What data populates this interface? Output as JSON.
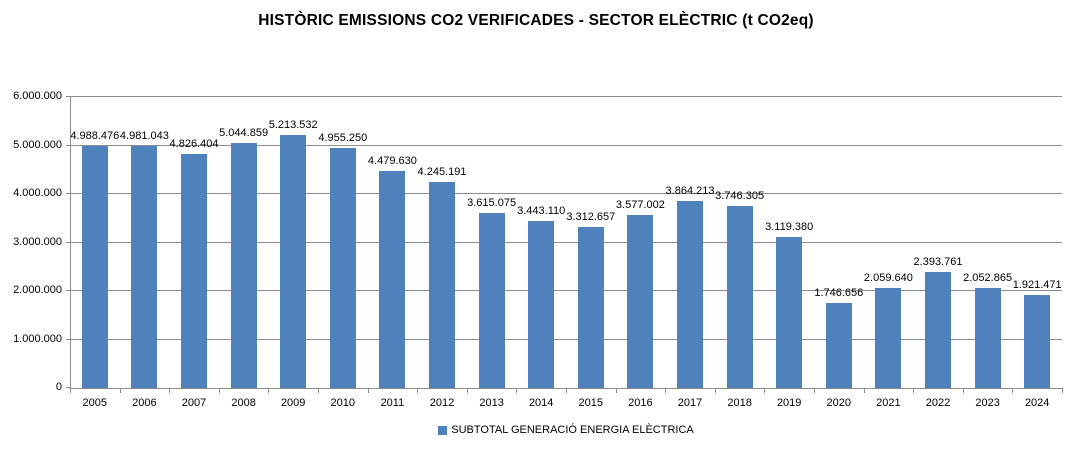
{
  "chart_data": {
    "type": "bar",
    "title": "HISTÒRIC EMISSIONS CO2 VERIFICADES - SECTOR ELÈCTRIC (t CO2eq)",
    "xlabel": "",
    "ylabel": "",
    "categories": [
      "2005",
      "2006",
      "2007",
      "2008",
      "2009",
      "2010",
      "2011",
      "2012",
      "2013",
      "2014",
      "2015",
      "2016",
      "2017",
      "2018",
      "2019",
      "2020",
      "2021",
      "2022",
      "2023",
      "2024"
    ],
    "series": [
      {
        "name": "SUBTOTAL GENERACIÓ ENERGIA ELÈCTRICA",
        "values": [
          4988476,
          4981043,
          4826404,
          5044859,
          5213532,
          4955250,
          4479630,
          4245191,
          3615075,
          3443110,
          3312657,
          3577002,
          3864213,
          3746305,
          3119380,
          1746656,
          2059640,
          2393761,
          2052865,
          1921471
        ]
      }
    ],
    "value_labels": [
      "4.988.476",
      "4.981.043",
      "4.826.404",
      "5.044.859",
      "5.213.532",
      "4.955.250",
      "4.479.630",
      "4.245.191",
      "3.615.075",
      "3.443.110",
      "3.312.657",
      "3.577.002",
      "3.864.213",
      "3.746.305",
      "3.119.380",
      "1.746.656",
      "2.059.640",
      "2.393.761",
      "2.052.865",
      "1.921.471"
    ],
    "ylim": [
      0,
      6000000
    ],
    "ytick_interval": 1000000,
    "ytick_labels": [
      "0",
      "1.000.000",
      "2.000.000",
      "3.000.000",
      "4.000.000",
      "5.000.000",
      "6.000.000"
    ],
    "grid": true,
    "legend_position": "bottom",
    "legend_label": "SUBTOTAL GENERACIÓ ENERGIA ELÈCTRICA",
    "bar_color": "#4F81BD",
    "gridline_color": "#8c8c8c",
    "text_color": "#000000"
  }
}
